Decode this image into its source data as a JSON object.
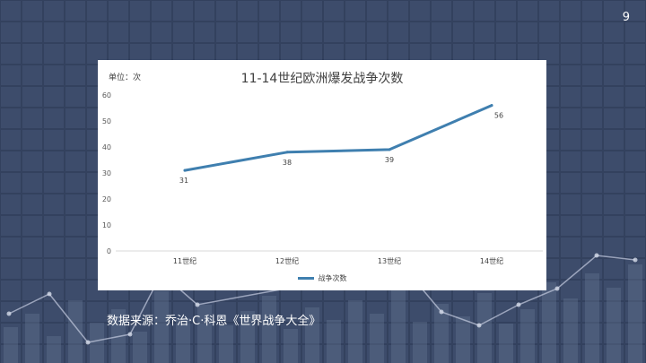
{
  "page_number": "9",
  "source_note": "数据来源：乔治·C·科恩《世界战争大全》",
  "colors": {
    "background": "#3d4c6b",
    "grid": "#33415e",
    "line": "#3f7faf",
    "card": "#ffffff"
  },
  "chart_data": {
    "type": "line",
    "title": "11-14世纪欧洲爆发战争次数",
    "unit_label": "单位：次",
    "categories": [
      "11世纪",
      "12世纪",
      "13世纪",
      "14世纪"
    ],
    "series": [
      {
        "name": "战争次数",
        "values": [
          31,
          38,
          39,
          56
        ],
        "data_labels": [
          "31",
          "38",
          "39",
          "56"
        ]
      }
    ],
    "y_axis_ticks": [
      "60",
      "50",
      "40",
      "30",
      "20",
      "10",
      "0"
    ],
    "legend": "bottom",
    "grid": false
  }
}
